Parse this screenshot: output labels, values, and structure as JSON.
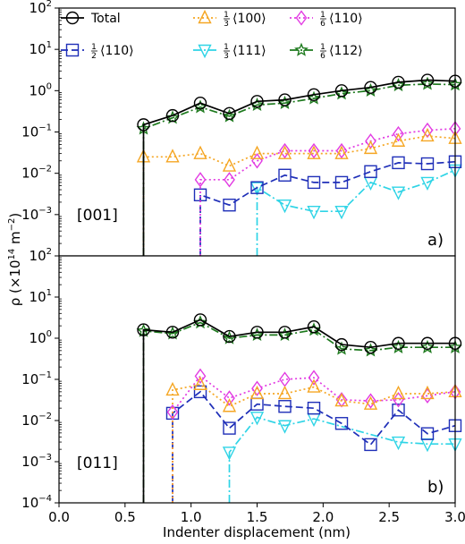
{
  "chart_data": [
    {
      "type": "line",
      "panel_label": "a)",
      "orientation_label": "[001]",
      "xlim": [
        0.0,
        3.0
      ],
      "ylim": [
        0.0001,
        100
      ],
      "yscale": "log",
      "series": [
        {
          "key": "total",
          "x": [
            0.64,
            0.86,
            1.07,
            1.29,
            1.5,
            1.71,
            1.93,
            2.14,
            2.36,
            2.57,
            2.79,
            3.0
          ],
          "values": [
            0.15,
            0.25,
            0.5,
            0.28,
            0.55,
            0.6,
            0.8,
            1.0,
            1.2,
            1.6,
            1.8,
            1.7
          ]
        },
        {
          "key": "s112",
          "x": [
            0.64,
            0.86,
            1.07,
            1.29,
            1.5,
            1.71,
            1.93,
            2.14,
            2.36,
            2.57,
            2.79,
            3.0
          ],
          "values": [
            0.12,
            0.22,
            0.4,
            0.24,
            0.45,
            0.5,
            0.65,
            0.85,
            1.0,
            1.35,
            1.45,
            1.4
          ]
        },
        {
          "key": "s100",
          "x": [
            0.64,
            0.86,
            1.07,
            1.29,
            1.5,
            1.71,
            1.93,
            2.14,
            2.36,
            2.57,
            2.79,
            3.0
          ],
          "values": [
            0.025,
            0.025,
            0.03,
            0.015,
            0.03,
            0.03,
            0.03,
            0.03,
            0.04,
            0.06,
            0.08,
            0.07
          ]
        },
        {
          "key": "s110_6",
          "x": [
            1.07,
            1.29,
            1.5,
            1.71,
            1.93,
            2.14,
            2.36,
            2.57,
            2.79,
            3.0
          ],
          "values": [
            0.007,
            0.007,
            0.02,
            0.035,
            0.035,
            0.035,
            0.06,
            0.09,
            0.11,
            0.12
          ]
        },
        {
          "key": "s110_2",
          "x": [
            1.07,
            1.29,
            1.5,
            1.71,
            1.93,
            2.14,
            2.36,
            2.57,
            2.79,
            3.0
          ],
          "values": [
            0.003,
            0.0017,
            0.0045,
            0.009,
            0.006,
            0.006,
            0.011,
            0.018,
            0.017,
            0.019
          ]
        },
        {
          "key": "s111",
          "x": [
            1.5,
            1.71,
            1.93,
            2.14,
            2.36,
            2.57,
            2.79,
            3.0
          ],
          "values": [
            0.0045,
            0.0017,
            0.0012,
            0.0012,
            0.006,
            0.0035,
            0.006,
            0.012
          ]
        }
      ]
    },
    {
      "type": "line",
      "panel_label": "b)",
      "orientation_label": "[011]",
      "xlim": [
        0.0,
        3.0
      ],
      "ylim": [
        0.0001,
        100
      ],
      "yscale": "log",
      "series": [
        {
          "key": "total",
          "x": [
            0.64,
            0.86,
            1.07,
            1.29,
            1.5,
            1.71,
            1.93,
            2.14,
            2.36,
            2.57,
            2.79,
            3.0
          ],
          "values": [
            1.6,
            1.4,
            2.8,
            1.1,
            1.4,
            1.4,
            1.9,
            0.7,
            0.6,
            0.75,
            0.75,
            0.75
          ]
        },
        {
          "key": "s112",
          "x": [
            0.64,
            0.86,
            1.07,
            1.29,
            1.5,
            1.71,
            1.93,
            2.14,
            2.36,
            2.57,
            2.79,
            3.0
          ],
          "values": [
            1.5,
            1.3,
            2.4,
            1.0,
            1.2,
            1.2,
            1.6,
            0.55,
            0.5,
            0.6,
            0.6,
            0.6
          ]
        },
        {
          "key": "s100",
          "x": [
            0.86,
            1.07,
            1.29,
            1.5,
            1.71,
            1.93,
            2.14,
            2.36,
            2.57,
            2.79,
            3.0
          ],
          "values": [
            0.055,
            0.075,
            0.022,
            0.045,
            0.045,
            0.065,
            0.03,
            0.025,
            0.045,
            0.045,
            0.05
          ]
        },
        {
          "key": "s110_6",
          "x": [
            0.86,
            1.07,
            1.29,
            1.5,
            1.71,
            1.93,
            2.14,
            2.36,
            2.57,
            2.79,
            3.0
          ],
          "values": [
            0.016,
            0.12,
            0.035,
            0.06,
            0.1,
            0.11,
            0.032,
            0.03,
            0.032,
            0.04,
            0.05
          ]
        },
        {
          "key": "s110_2",
          "x": [
            0.86,
            1.07,
            1.29,
            1.5,
            1.71,
            1.93,
            2.14,
            2.36,
            2.57,
            2.79,
            3.0
          ],
          "values": [
            0.015,
            0.05,
            0.0065,
            0.025,
            0.022,
            0.02,
            0.0085,
            0.0026,
            0.018,
            0.0048,
            0.0075
          ]
        },
        {
          "key": "s111",
          "x": [
            1.29,
            1.5,
            1.71,
            1.93,
            2.57,
            2.79,
            3.0
          ],
          "values": [
            0.0017,
            0.012,
            0.0075,
            0.011,
            0.003,
            0.0027,
            0.0027
          ]
        }
      ]
    }
  ],
  "legend": [
    {
      "key": "total",
      "label": "Total",
      "frac": "",
      "dir": "",
      "color": "#000000",
      "marker": "circle",
      "dash": "solid"
    },
    {
      "key": "s110_2",
      "label": "",
      "frac": "1|2",
      "dir": "⟨110⟩",
      "color": "#1f2fb8",
      "marker": "square",
      "dash": "dashed"
    },
    {
      "key": "s100",
      "label": "",
      "frac": "1|3",
      "dir": "⟨100⟩",
      "color": "#f5a623",
      "marker": "triangle-up",
      "dash": "dotted"
    },
    {
      "key": "s111",
      "label": "",
      "frac": "1|3",
      "dir": "⟨111⟩",
      "color": "#2fd4e6",
      "marker": "triangle-down",
      "dash": "dashdot"
    },
    {
      "key": "s110_6",
      "label": "",
      "frac": "1|6",
      "dir": "⟨110⟩",
      "color": "#e23be2",
      "marker": "diamond",
      "dash": "dotted"
    },
    {
      "key": "s112",
      "label": "",
      "frac": "1|6",
      "dir": "⟨112⟩",
      "color": "#1e7a1e",
      "marker": "star",
      "dash": "dashdot"
    }
  ],
  "axes": {
    "xlabel": "Indenter displacement (nm)",
    "ylabel": "ρ (×10¹⁴ m⁻²)",
    "xticks": [
      "0.0",
      "0.5",
      "1.0",
      "1.5",
      "2.0",
      "2.5",
      "3.0"
    ]
  }
}
